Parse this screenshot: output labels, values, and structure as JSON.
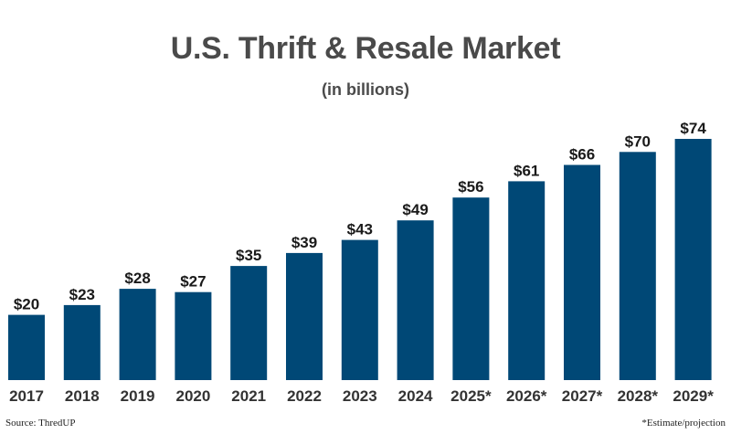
{
  "chart_data": {
    "type": "bar",
    "title": "U.S. Thrift & Resale Market",
    "subtitle": "(in billions)",
    "categories": [
      "2017",
      "2018",
      "2019",
      "2020",
      "2021",
      "2022",
      "2023",
      "2024",
      "2025*",
      "2026*",
      "2027*",
      "2028*",
      "2029*"
    ],
    "values": [
      20,
      23,
      28,
      27,
      35,
      39,
      43,
      49,
      56,
      61,
      66,
      70,
      74
    ],
    "value_labels": [
      "$20",
      "$23",
      "$28",
      "$27",
      "$35",
      "$39",
      "$43",
      "$49",
      "$56",
      "$61",
      "$66",
      "$70",
      "$74"
    ],
    "ylim": [
      0,
      74
    ],
    "grid": false,
    "bar_color": "#004876"
  },
  "footer": {
    "source": "Source: ThredUP",
    "note": "*Estimate/projection"
  }
}
